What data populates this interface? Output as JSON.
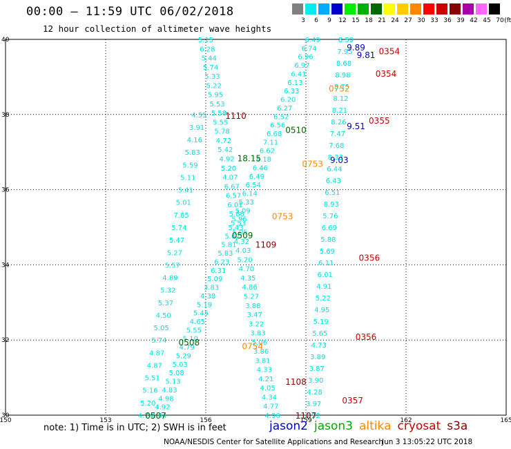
{
  "header": {
    "title": "00:00 – 11:59 UTC 06/02/2018",
    "subtitle": "12 hour collection of altimeter wave heights",
    "colorbar": [
      {
        "color": "#808080",
        "label": "3"
      },
      {
        "color": "#00eeee",
        "label": "6"
      },
      {
        "color": "#00aaff",
        "label": "9"
      },
      {
        "color": "#0000cc",
        "label": "12"
      },
      {
        "color": "#00ee00",
        "label": "15"
      },
      {
        "color": "#00b000",
        "label": "18"
      },
      {
        "color": "#006600",
        "label": "21"
      },
      {
        "color": "#ffff00",
        "label": "24"
      },
      {
        "color": "#ffcc00",
        "label": "27"
      },
      {
        "color": "#ff8800",
        "label": "30"
      },
      {
        "color": "#ff0000",
        "label": "33"
      },
      {
        "color": "#cc0000",
        "label": "36"
      },
      {
        "color": "#880000",
        "label": "39"
      },
      {
        "color": "#aa00aa",
        "label": "42"
      },
      {
        "color": "#ff66ff",
        "label": "45"
      },
      {
        "color": "#000000",
        "label": "70"
      }
    ],
    "colorbar_unit": "(ft)"
  },
  "map": {
    "lon_ticks": [
      "150",
      "153",
      "156",
      "159",
      "162",
      "165"
    ],
    "lat_ticks": [
      "40",
      "38",
      "36",
      "34",
      "32",
      "30"
    ],
    "lon_range": [
      150,
      165
    ],
    "lat_range": [
      30,
      40
    ]
  },
  "tracks": [
    {
      "satellite": "s3a",
      "color": "#00e0e0",
      "lon_start": 156.0,
      "lat_start": 40.0,
      "lon_end": 158.0,
      "lat_end": 30.0,
      "values": [
        "5.15",
        "6.28",
        "5.44",
        "5.74",
        "5.33",
        "5.22",
        "5.95",
        "5.53",
        "5.58",
        "5.55",
        "5.78",
        "4.72",
        "5.42",
        "4.92",
        "5.20",
        "4.07",
        "6.67",
        "6.57",
        "6.01",
        "5.88",
        "5.53",
        "5.05",
        "4.32",
        "4.03",
        "5.20",
        "4.70",
        "4.35",
        "4.86",
        "5.27",
        "3.88",
        "3.47",
        "3.22",
        "3.83",
        "5.06",
        "3.86",
        "3.81",
        "4.33",
        "4.21",
        "4.05",
        "4.34",
        "4.77",
        "4.96"
      ]
    },
    {
      "satellite": "s3a",
      "color": "#00e0e0",
      "lon_start": 159.2,
      "lat_start": 40.0,
      "lon_end": 154.6,
      "lat_end": 30.0,
      "values": [
        "6.49",
        "6.74",
        "6.96",
        "6.97",
        "6.41",
        "6.13",
        "6.33",
        "6.20",
        "6.27",
        "6.52",
        "6.56",
        "6.68",
        "7.11",
        "6.62",
        "6.18",
        "6.46",
        "6.49",
        "6.54",
        "6.14",
        "5.33",
        "5.09",
        "5.96",
        "5.43",
        "5.62",
        "5.81",
        "5.83",
        "6.23",
        "6.31",
        "5.09",
        "3.83",
        "4.38",
        "5.19",
        "5.45",
        "4.65",
        "5.55",
        "5.10",
        "4.79",
        "5.29",
        "5.03",
        "5.08",
        "5.13",
        "4.83",
        "4.98",
        "4.92",
        "4.44"
      ]
    },
    {
      "satellite": "s3a",
      "color": "#00e0e0",
      "lon_start": 155.8,
      "lat_start": 38.0,
      "lon_end": 154.2,
      "lat_end": 30.0,
      "values": [
        "4.55",
        "3.91",
        "4.16",
        "5.83",
        "5.59",
        "5.11",
        "5.41",
        "5.01",
        "7.85",
        "5.74",
        "5.47",
        "5.27",
        "5.57",
        "4.89",
        "5.32",
        "5.37",
        "4.50",
        "5.05",
        "5.74",
        "4.87",
        "4.87",
        "5.51",
        "5.16",
        "5.20",
        "4.74"
      ]
    },
    {
      "satellite": "s3a",
      "color": "#00e0e0",
      "lon_start": 160.2,
      "lat_start": 40.0,
      "lon_end": 159.2,
      "lat_end": 30.0,
      "values": [
        "8.59",
        "7.95",
        "8.68",
        "8.98",
        "8.75",
        "8.12",
        "8.21",
        "8.26",
        "7.47",
        "7.68",
        "8.33",
        "6.44",
        "6.43",
        "6.51",
        "8.93",
        "5.76",
        "6.69",
        "5.88",
        "5.69",
        "6.11",
        "6.01",
        "4.91",
        "5.22",
        "4.95",
        "5.19",
        "5.65",
        "4.73",
        "3.89",
        "3.87",
        "3.90",
        "4.28",
        "3.97",
        "4.32"
      ]
    }
  ],
  "labels": [
    {
      "text": "0354",
      "color": "#cc0000",
      "lon": 161.5,
      "lat": 39.7
    },
    {
      "text": "0354",
      "color": "#cc0000",
      "lon": 161.4,
      "lat": 39.1
    },
    {
      "text": "0752",
      "color": "#ff8800",
      "lon": 160.0,
      "lat": 38.7
    },
    {
      "text": "1110",
      "color": "#880000",
      "lon": 156.9,
      "lat": 37.98
    },
    {
      "text": "0355",
      "color": "#cc0000",
      "lon": 161.2,
      "lat": 37.85
    },
    {
      "text": "0510",
      "color": "#006600",
      "lon": 158.7,
      "lat": 37.6
    },
    {
      "text": "0753",
      "color": "#ff8800",
      "lon": 159.2,
      "lat": 36.7
    },
    {
      "text": "0753",
      "color": "#ff8800",
      "lon": 158.3,
      "lat": 35.3
    },
    {
      "text": "0509",
      "color": "#006600",
      "lon": 157.1,
      "lat": 34.8
    },
    {
      "text": "1109",
      "color": "#880000",
      "lon": 157.8,
      "lat": 34.55
    },
    {
      "text": "0356",
      "color": "#cc0000",
      "lon": 160.9,
      "lat": 34.2
    },
    {
      "text": "0356",
      "color": "#cc0000",
      "lon": 160.8,
      "lat": 32.1
    },
    {
      "text": "0508",
      "color": "#006600",
      "lon": 155.5,
      "lat": 31.95
    },
    {
      "text": "0754",
      "color": "#ff8800",
      "lon": 157.4,
      "lat": 31.85
    },
    {
      "text": "1108",
      "color": "#880000",
      "lon": 158.7,
      "lat": 30.9
    },
    {
      "text": "0357",
      "color": "#cc0000",
      "lon": 160.4,
      "lat": 30.4
    },
    {
      "text": "0507",
      "color": "#006600",
      "lon": 154.5,
      "lat": 30.0
    },
    {
      "text": "1107",
      "color": "#880000",
      "lon": 159.0,
      "lat": 30.0
    },
    {
      "text": "9.03",
      "color": "#0000cc",
      "lon": 160.0,
      "lat": 36.8
    },
    {
      "text": "9.51",
      "color": "#0000cc",
      "lon": 160.5,
      "lat": 37.7
    },
    {
      "text": "9.81",
      "color": "#0000cc",
      "lon": 160.8,
      "lat": 39.6
    },
    {
      "text": "9.89",
      "color": "#0000cc",
      "lon": 160.5,
      "lat": 39.8
    },
    {
      "text": "18.15",
      "color": "#006600",
      "lon": 157.3,
      "lat": 36.85
    }
  ],
  "footer": {
    "note": "note:  1) Time is in UTC;  2) SWH is in feet",
    "satellites": [
      {
        "name": "jason2",
        "color": "#0000cc"
      },
      {
        "name": "jason3",
        "color": "#00aa00"
      },
      {
        "name": "altika",
        "color": "#ff8800"
      },
      {
        "name": "cryosat",
        "color": "#cc0000"
      },
      {
        "name": "s3a",
        "color": "#880000"
      }
    ],
    "credit": "NOAA/NESDIS Center for Satellite Applications and Research",
    "timestamp": "Jun  3 13:05:22 UTC 2018"
  }
}
